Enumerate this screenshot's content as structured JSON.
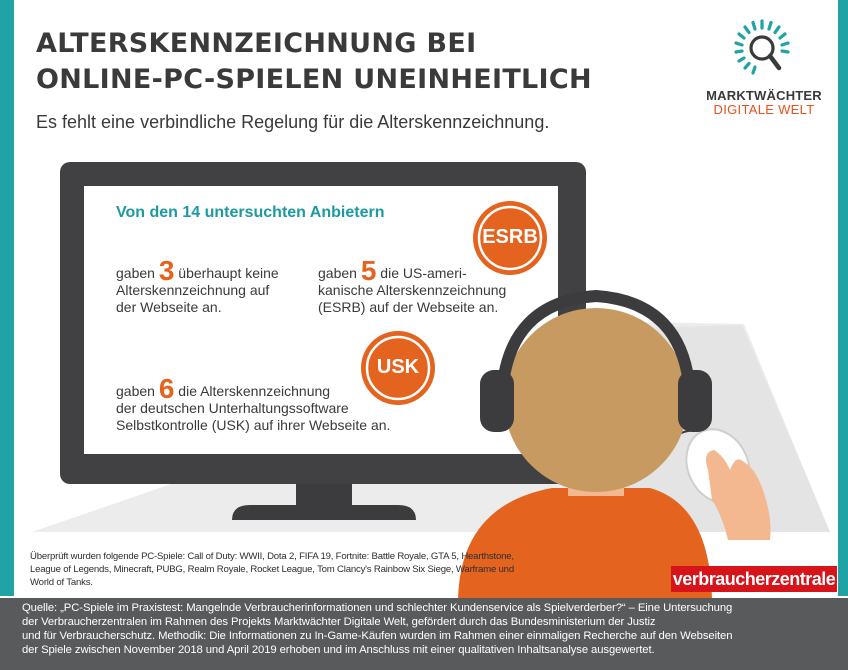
{
  "title": {
    "line1": "ALTERSKENNZEICHNUNG BEI",
    "line2": "ONLINE-PC-SPIELEN UNEINHEITLICH"
  },
  "subtitle": "Es fehlt eine verbindliche Regelung für die Alterskennzeichnung.",
  "logo": {
    "line1": "MARKTWÄCHTER",
    "line2": "DIGITALE WELT"
  },
  "screen": {
    "headline": "Von den 14 untersuchten Anbietern",
    "stat1": {
      "pre": "gaben",
      "number": "3",
      "post": "überhaupt keine",
      "line2": "Alterskennzeichnung auf",
      "line3": "der Webseite an."
    },
    "stat2": {
      "pre": "gaben",
      "number": "5",
      "post": "die US-ameri-",
      "line2": "kanische Alterskennzeichnung",
      "line3": "(ESRB) auf der Webseite an."
    },
    "stat3": {
      "pre": "gaben",
      "number": "6",
      "post": "die Alterskennzeichnung",
      "line2": "der deutschen Unterhaltungssoftware",
      "line3": "Selbstkontrolle (USK) auf ihrer Webseite an."
    },
    "badge_esrb": "ESRB",
    "badge_usk": "USK"
  },
  "footnote": {
    "line1": "Überprüft wurden folgende PC-Spiele: Call of Duty: WWII, Dota 2, FIFA 19, Fortnite: Battle Royale, GTA 5, Hearthstone,",
    "line2": "League of Legends, Minecraft, PUBG, Realm Royale, Rocket League, Tom Clancy's Rainbow Six Siege, Warframe und",
    "line3": "World of Tanks."
  },
  "publisher_logo": "verbraucherzentrale",
  "source": {
    "line1": "Quelle: „PC-Spiele im Praxistest: Mangelnde Verbraucherinformationen und schlechter Kundenservice als Spielverderber?“ – Eine Untersuchung",
    "line2": "der Verbraucherzentralen im Rahmen des Projekts Marktwächter Digitale Welt, gefördert durch das Bundesministerium der Justiz",
    "line3": "und für Verbraucherschutz. Methodik: Die Informationen zu In-Game-Käufen wurden im Rahmen einer einmaligen Recherche auf den Webseiten",
    "line4": "der Spiele zwischen November 2018 und April 2019 erhoben und im Anschluss mit einer qualitativen Inhaltsanalyse ausgewertet."
  },
  "colors": {
    "teal": "#1fa3a5",
    "orange": "#e4641f",
    "dark_text": "#3a3a3a",
    "monitor": "#414143",
    "footer_bg": "#595a5c",
    "brand_red": "#d7141a"
  }
}
